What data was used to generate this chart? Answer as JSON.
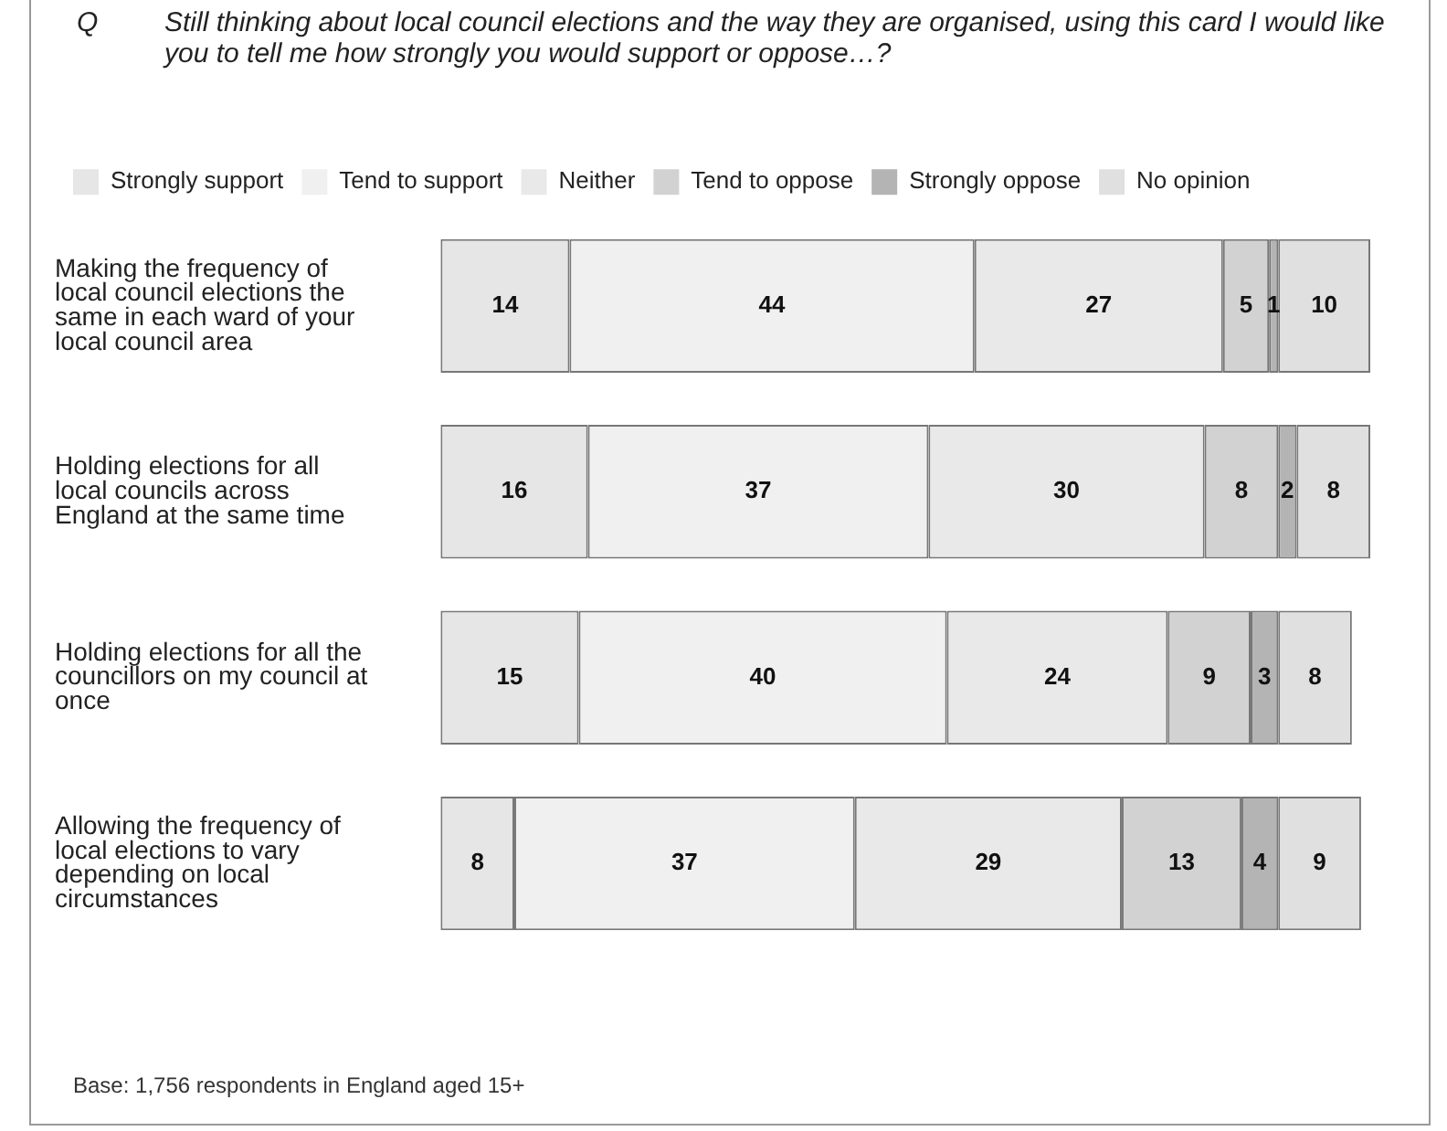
{
  "chart_data": {
    "type": "bar",
    "orientation": "horizontal",
    "stacked": true,
    "title": "Still thinking about local council elections and the way they are organised, using this card I would like you to tell me how strongly you would support or oppose…?",
    "annotations": [
      "Q",
      "Base: 1,756 respondents in England aged 15+"
    ],
    "categories": [
      "Making the frequency of local council elections the same in each ward of your local council area",
      "Holding elections for all local councils across England at the same time",
      "Holding elections for all the councillors on my council at once",
      "Allowing the frequency of local elections to vary depending on local circumstances"
    ],
    "series": [
      {
        "name": "Strongly support",
        "color": "#e6e6e6",
        "values": [
          14,
          16,
          15,
          8
        ]
      },
      {
        "name": "Tend to support",
        "color": "#f0f0f0",
        "values": [
          44,
          37,
          40,
          37
        ]
      },
      {
        "name": "Neither",
        "color": "#e9e9e9",
        "values": [
          27,
          30,
          24,
          29
        ]
      },
      {
        "name": "Tend to oppose",
        "color": "#d2d2d2",
        "values": [
          5,
          8,
          9,
          13
        ]
      },
      {
        "name": "Strongly oppose",
        "color": "#b4b4b4",
        "values": [
          1,
          2,
          3,
          4
        ]
      },
      {
        "name": "No opinion",
        "color": "#e0e0e0",
        "values": [
          10,
          8,
          8,
          9
        ]
      }
    ],
    "xlim": [
      0,
      101
    ],
    "data_labels": true,
    "legend": "top left",
    "tick_labels": "y",
    "grid": false
  }
}
